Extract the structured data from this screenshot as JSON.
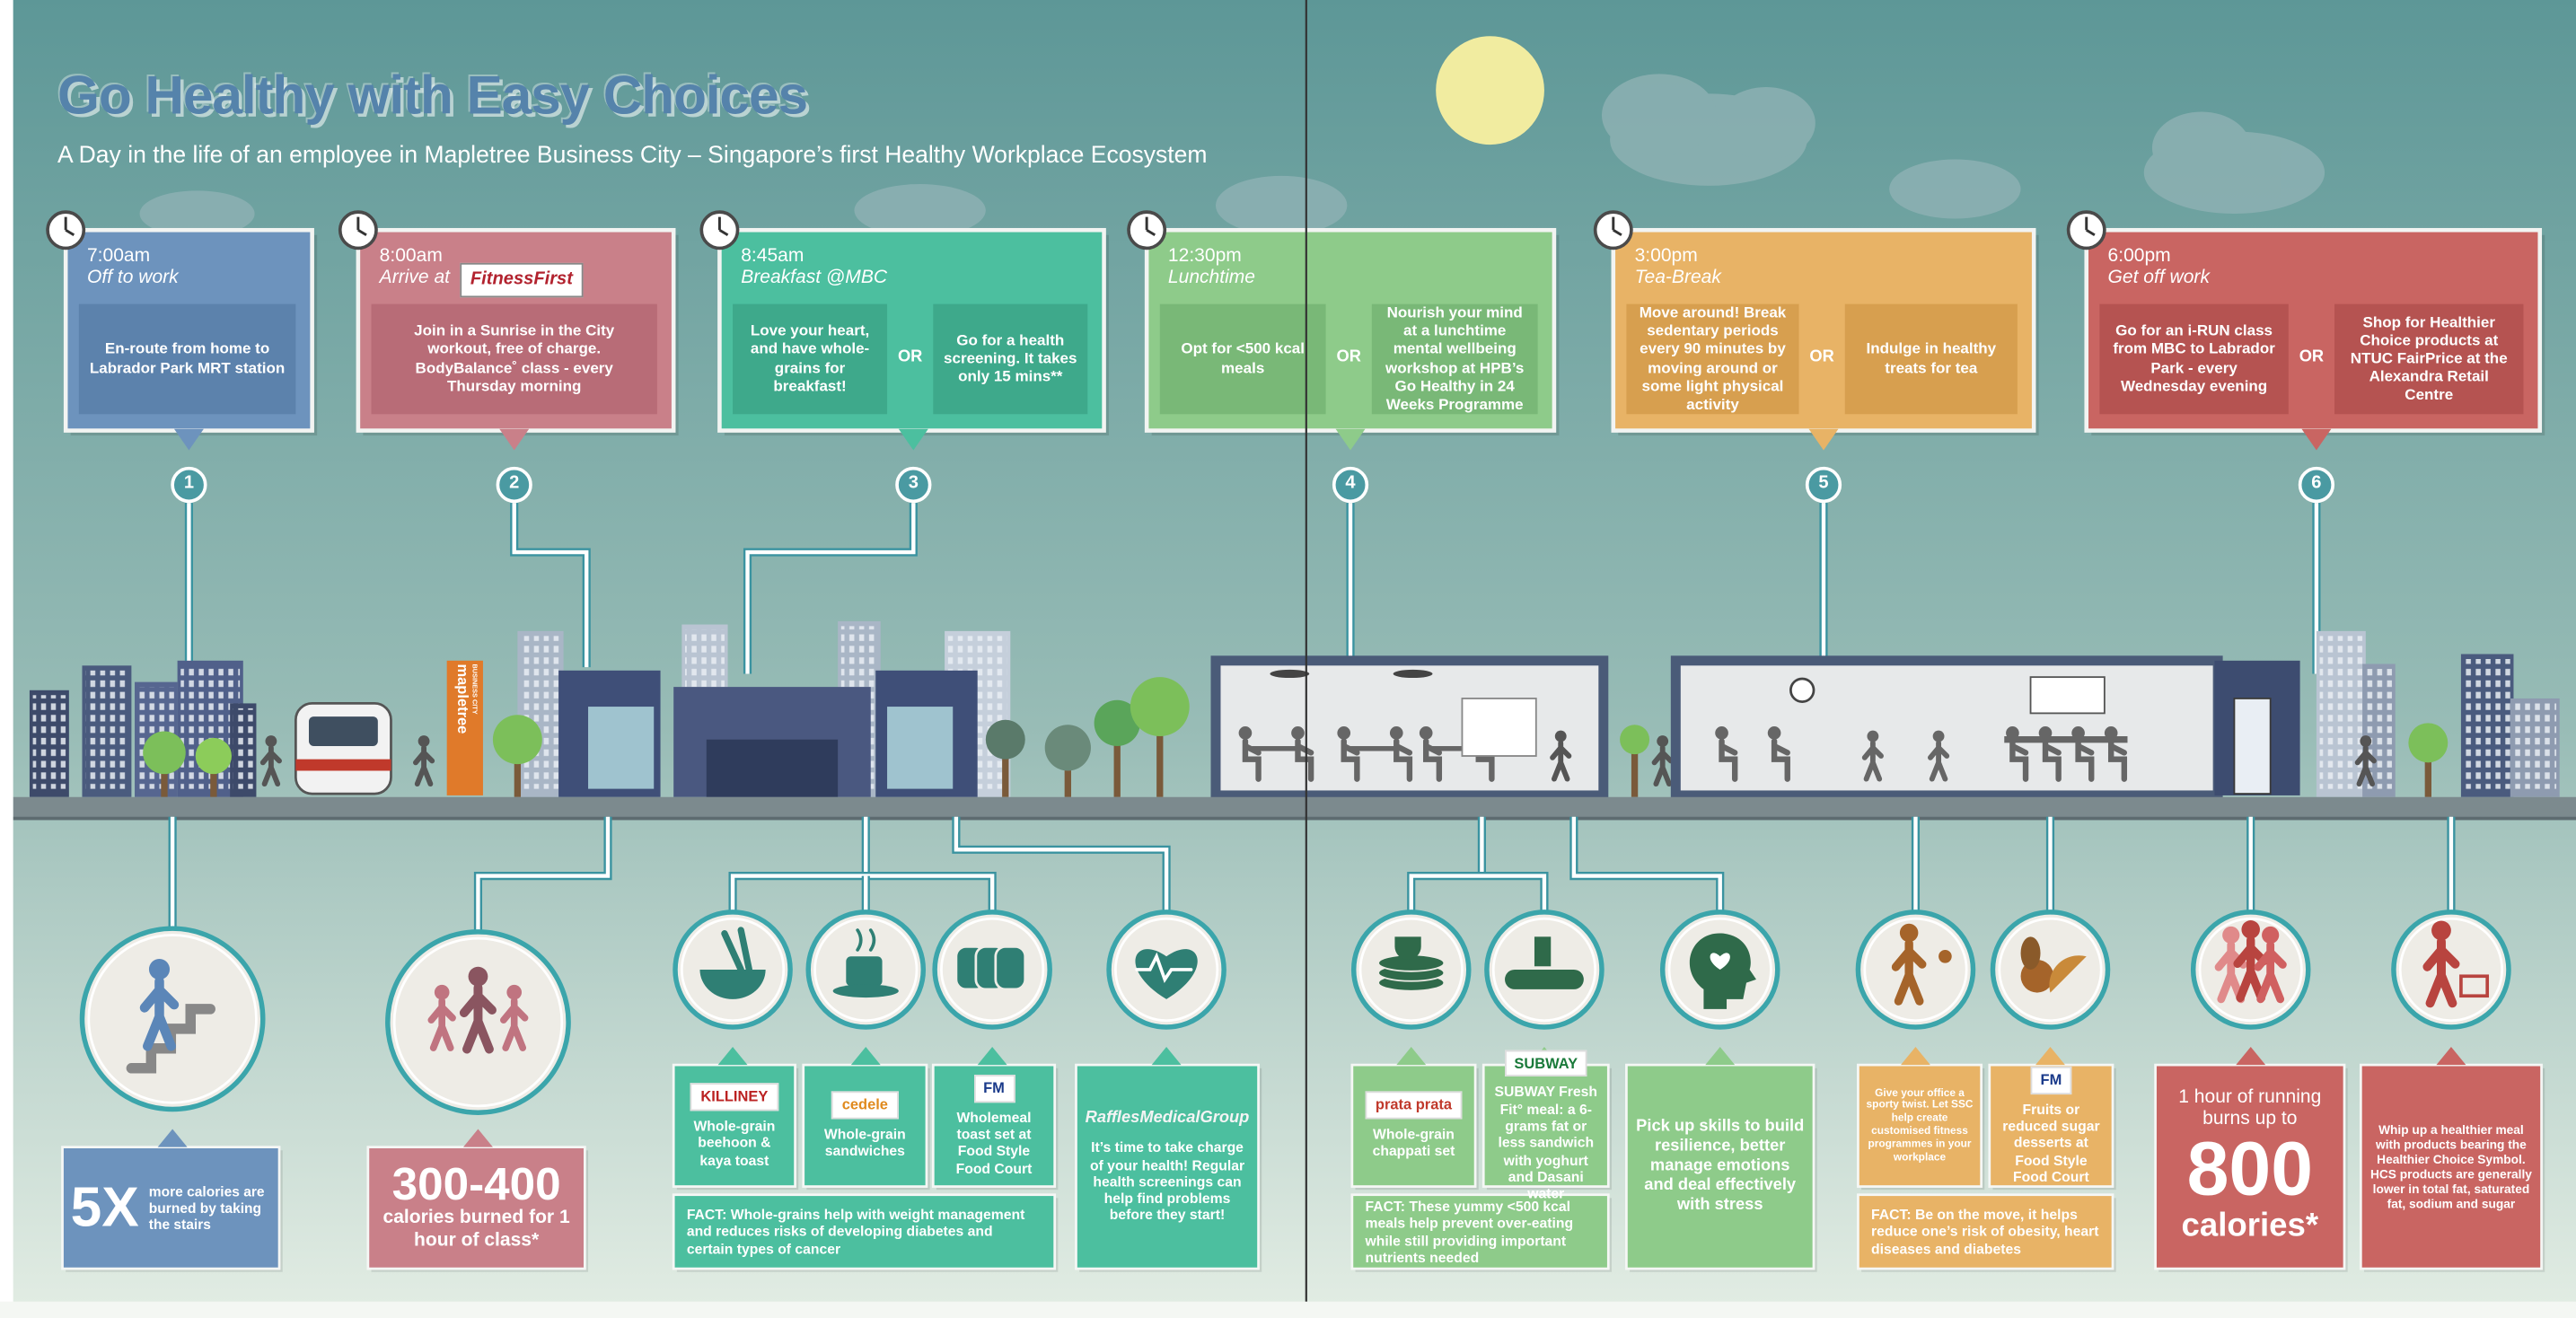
{
  "header": {
    "title": "Go Healthy with Easy Choices",
    "subtitle": "A Day in the life of an employee in Mapletree Business City – Singapore’s first Healthy Workplace Ecosystem"
  },
  "or_label": "OR",
  "steps": [
    {
      "number": "1",
      "time": "7:00am",
      "activity": "Off to work",
      "options": [
        "En-route from home to Labrador Park MRT station"
      ]
    },
    {
      "number": "2",
      "time": "8:00am",
      "activity": "Arrive at",
      "brand": "FitnessFirst",
      "options": [
        "Join in a Sunrise in the City workout, free of charge. BodyBalance˚ class - every Thursday morning"
      ]
    },
    {
      "number": "3",
      "time": "8:45am",
      "activity": "Breakfast @MBC",
      "options": [
        "Love your heart, and have whole-grains for breakfast!",
        "Go for a health screening. It takes only 15 mins**"
      ]
    },
    {
      "number": "4",
      "time": "12:30pm",
      "activity": "Lunchtime",
      "options": [
        "Opt for <500 kcal meals",
        "Nourish your mind at a lunchtime mental wellbeing workshop at HPB’s Go Healthy in 24 Weeks Programme"
      ]
    },
    {
      "number": "5",
      "time": "3:00pm",
      "activity": "Tea-Break",
      "options": [
        "Move around! Break sedentary periods every 90 minutes by moving around or some light physical activity",
        "Indulge in healthy treats for tea"
      ]
    },
    {
      "number": "6",
      "time": "6:00pm",
      "activity": "Get off work",
      "options": [
        "Go for an i-RUN class from MBC to Labrador Park - every Wednesday evening",
        "Shop for Healthier Choice products at NTUC FairPrice at the Alexandra Retail Centre"
      ]
    }
  ],
  "scene": {
    "building_sign": "mapletree",
    "building_sign_sub": "BUSINESS CITY"
  },
  "results": [
    {
      "headline": "5X",
      "text": "more calories are burned by taking the stairs"
    },
    {
      "headline": "300-400",
      "text": "calories burned for 1 hour of class*"
    },
    {
      "brand": "KILLINEY",
      "text": "Whole-grain beehoon & kaya toast"
    },
    {
      "brand": "cedele",
      "text": "Whole-grain sandwiches"
    },
    {
      "brand": "FM",
      "text": "Wholemeal toast set at Food Style Food Court"
    },
    {
      "text": "FACT: Whole-grains help with weight management and reduces risks of developing diabetes and certain types of cancer"
    },
    {
      "brand": "RafflesMedicalGroup",
      "text": "It’s time to take charge of your health! Regular health screenings can help find problems before they start!"
    },
    {
      "brand": "prata prata",
      "text": "Whole-grain chappati set"
    },
    {
      "brand": "SUBWAY",
      "text": "SUBWAY Fresh Fit° meal: a 6-grams fat or less sandwich with yoghurt and Dasani water"
    },
    {
      "text": "FACT: These yummy <500 kcal meals help prevent over-eating while still providing important nutrients needed"
    },
    {
      "text": "Pick up skills to build resilience, better manage emotions and deal effectively with stress"
    },
    {
      "text": "Give your office a sporty twist. Let SSC help create customised fitness programmes in your workplace"
    },
    {
      "brand": "FM",
      "text": "Fruits or reduced sugar desserts at Food Style Food Court"
    },
    {
      "text": "FACT: Be on the move, it helps reduce one’s risk of obesity, heart diseases and diabetes"
    },
    {
      "pre": "1 hour of running burns up to",
      "headline": "800",
      "text": "calories*"
    },
    {
      "text": "Whip up a healthier meal with products bearing the Healthier Choice Symbol. HCS products are generally lower in total fat, saturated fat, sodium and sugar"
    }
  ]
}
